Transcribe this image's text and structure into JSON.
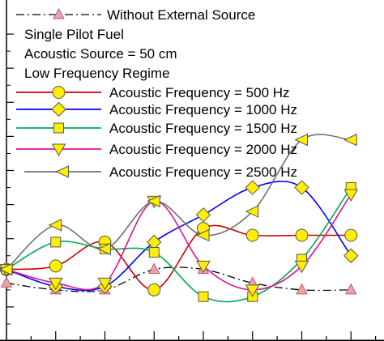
{
  "chart_data": {
    "type": "line",
    "title": "",
    "xlabel": "",
    "ylabel": "",
    "x": [
      0,
      1,
      2,
      3,
      4,
      5,
      6,
      7
    ],
    "xlim": [
      0,
      8
    ],
    "ylim": [
      0,
      10
    ],
    "grid": false,
    "legend_placement": "top-left",
    "annotations": [
      "Single Pilot Fuel",
      "Acoustic Source = 50 cm",
      "Low Frequency Regime"
    ],
    "series": [
      {
        "name": "Without External Source",
        "color": "#000000",
        "dash": "dashdot",
        "marker": "triangle-up",
        "values": [
          1.7,
          1.5,
          1.5,
          2.1,
          2.1,
          1.7,
          1.5,
          1.5
        ]
      },
      {
        "name": "Acoustic Frequency = 500 Hz",
        "color": "#cc0000",
        "dash": "solid",
        "marker": "circle",
        "values": [
          2.1,
          2.2,
          2.9,
          1.5,
          3.3,
          3.1,
          3.1,
          3.1
        ]
      },
      {
        "name": "Acoustic Frequency = 1000 Hz",
        "color": "#0000ff",
        "dash": "solid",
        "marker": "diamond",
        "values": [
          2.1,
          1.6,
          1.6,
          2.9,
          3.7,
          4.5,
          4.5,
          2.5
        ]
      },
      {
        "name": "Acoustic Frequency = 1500 Hz",
        "color": "#00aa55",
        "dash": "solid",
        "marker": "square",
        "values": [
          2.1,
          2.9,
          2.7,
          2.6,
          1.3,
          1.3,
          2.4,
          4.5
        ]
      },
      {
        "name": "Acoustic Frequency = 2000 Hz",
        "color": "#e0148c",
        "dash": "solid",
        "marker": "triangle-down",
        "values": [
          2.1,
          1.7,
          1.7,
          4.1,
          2.2,
          1.5,
          2.2,
          4.3
        ]
      },
      {
        "name": "Acoustic Frequency = 2500 Hz",
        "color": "#707070",
        "dash": "solid",
        "marker": "triangle-left",
        "values": [
          2.1,
          3.4,
          2.7,
          4.1,
          3.1,
          3.8,
          5.9,
          5.9
        ]
      }
    ],
    "marker_fill": "#ffee00"
  }
}
